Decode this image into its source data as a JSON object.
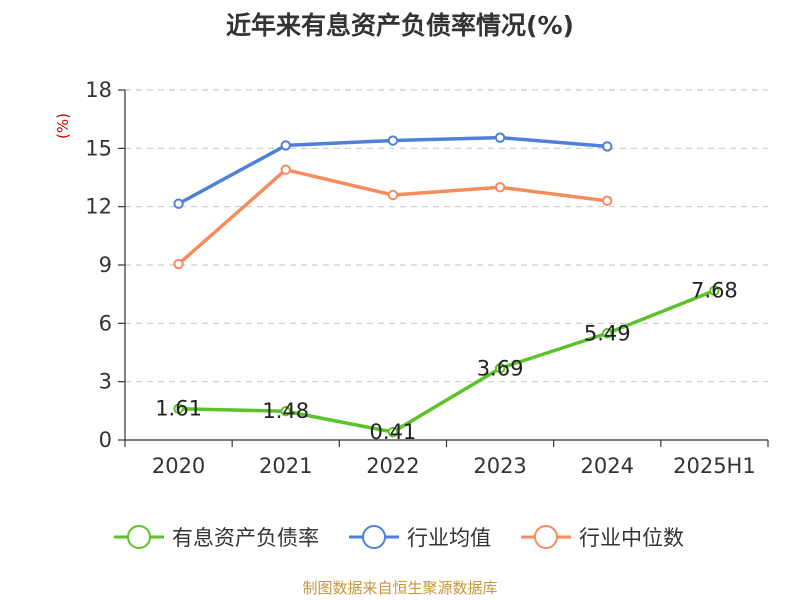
{
  "chart_data": {
    "type": "line",
    "title": "近年来有息资产负债率情况(%)",
    "ylabel": "(%)",
    "xlabel": "",
    "categories": [
      "2020",
      "2021",
      "2022",
      "2023",
      "2024",
      "2025H1"
    ],
    "ylim": [
      0,
      18
    ],
    "yticks": [
      0,
      3,
      6,
      9,
      12,
      15,
      18
    ],
    "grid": true,
    "legend_position": "bottom",
    "series": [
      {
        "name": "有息资产负债率",
        "color": "#5cc22a",
        "values": [
          1.61,
          1.48,
          0.41,
          3.69,
          5.49,
          7.68
        ],
        "show_labels": true
      },
      {
        "name": "行业均值",
        "color": "#4f7fd8",
        "values": [
          12.15,
          15.15,
          15.4,
          15.55,
          15.1,
          null
        ],
        "show_labels": false
      },
      {
        "name": "行业中位数",
        "color": "#f58c5c",
        "values": [
          9.05,
          13.9,
          12.6,
          13.0,
          12.3,
          null
        ],
        "show_labels": false
      }
    ]
  },
  "colors": {
    "source_note": "#c8963c",
    "unit_label": "#d40000",
    "axis": "#333333",
    "grid": "#cccccc"
  },
  "source_note": "制图数据来自恒生聚源数据库"
}
